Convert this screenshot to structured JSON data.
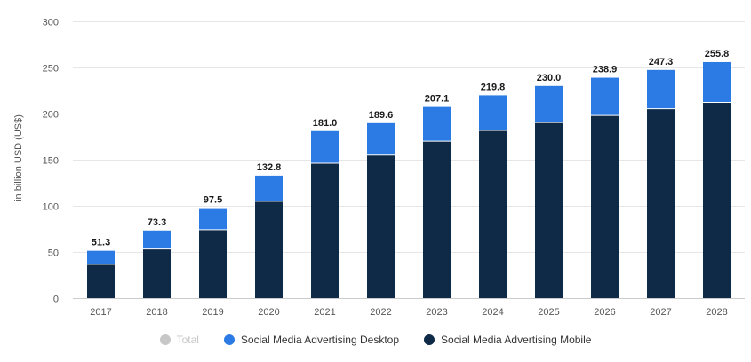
{
  "chart_data": {
    "type": "bar",
    "stacked": true,
    "title": "",
    "xlabel": "",
    "ylabel": "in billion USD (US$)",
    "ylim": [
      0,
      300
    ],
    "yticks": [
      0,
      50,
      100,
      150,
      200,
      250,
      300
    ],
    "grid": true,
    "legend_position": "bottom",
    "categories": [
      "2017",
      "2018",
      "2019",
      "2020",
      "2021",
      "2022",
      "2023",
      "2024",
      "2025",
      "2026",
      "2027",
      "2028"
    ],
    "series": [
      {
        "name": "Social Media Advertising Mobile",
        "color": "#0e2a47",
        "values": [
          36.6,
          53.3,
          74.2,
          104.9,
          146.2,
          155.0,
          170.1,
          181.7,
          190.3,
          197.9,
          205.2,
          212.0
        ]
      },
      {
        "name": "Social Media Advertising Desktop",
        "color": "#2c7be5",
        "values": [
          14.7,
          20.0,
          23.3,
          27.9,
          34.8,
          34.6,
          37.0,
          38.1,
          39.7,
          41.0,
          42.1,
          43.8
        ]
      }
    ],
    "totals": [
      "51.3",
      "73.3",
      "97.5",
      "132.8",
      "181.0",
      "189.6",
      "207.1",
      "219.8",
      "230.0",
      "238.9",
      "247.3",
      "255.8"
    ]
  },
  "legend": [
    {
      "label": "Total",
      "color": "#c7c7c7",
      "active": false
    },
    {
      "label": "Social Media Advertising Desktop",
      "color": "#2c7be5",
      "active": true
    },
    {
      "label": "Social Media Advertising Mobile",
      "color": "#0e2a47",
      "active": true
    }
  ]
}
